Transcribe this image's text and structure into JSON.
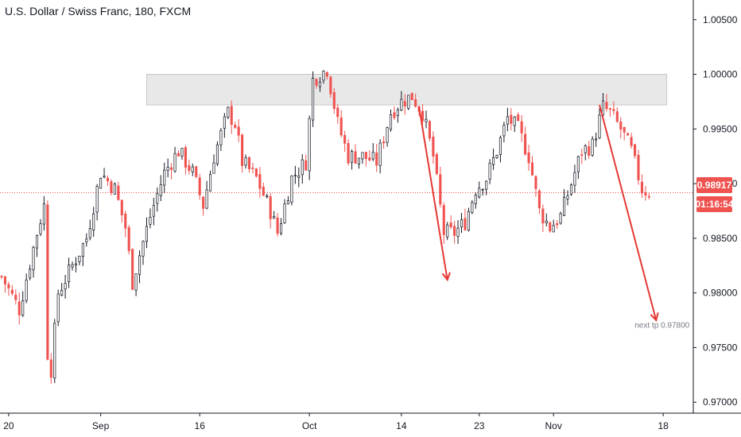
{
  "header": {
    "title": "U.S. Dollar / Swiss Franc, 180, FXCM"
  },
  "price_tags": {
    "last_price": "0.98917",
    "countdown": "01:16:54"
  },
  "colors": {
    "bull": "#131722",
    "bear": "#ef5350",
    "arrow": "#e53935",
    "resistance_zone": "#e8e8e8",
    "axis_text": "#131722",
    "price_line": "#ef5350"
  },
  "chart_data": {
    "type": "candlestick",
    "title": "U.S. Dollar / Swiss Franc, 180, FXCM",
    "ylim": [
      0.969,
      1.0068
    ],
    "y_ticks": [
      "1.00500",
      "1.00000",
      "0.99500",
      "0.99000",
      "0.98500",
      "0.98000",
      "0.97500",
      "0.97000"
    ],
    "x_ticks": [
      "20",
      "Sep",
      "16",
      "Oct",
      "14",
      "23",
      "Nov",
      "18"
    ],
    "xlim": [
      0,
      200
    ],
    "x_tick_positions": [
      2,
      28,
      56,
      87,
      113,
      135,
      156,
      187
    ],
    "last_price": 0.98917,
    "resistance_zone": {
      "x_from": 41,
      "x_to": 188,
      "y_low": 0.9972,
      "y_high": 1.0
    },
    "price_path": [
      [
        0,
        0.9815
      ],
      [
        5,
        0.9785
      ],
      [
        10,
        0.9855
      ],
      [
        12,
        0.988
      ],
      [
        13,
        0.9745
      ],
      [
        14,
        0.973
      ],
      [
        16,
        0.98
      ],
      [
        20,
        0.9825
      ],
      [
        24,
        0.985
      ],
      [
        28,
        0.991
      ],
      [
        32,
        0.9895
      ],
      [
        35,
        0.986
      ],
      [
        37,
        0.981
      ],
      [
        39,
        0.9835
      ],
      [
        42,
        0.987
      ],
      [
        46,
        0.991
      ],
      [
        50,
        0.993
      ],
      [
        54,
        0.991
      ],
      [
        57,
        0.988
      ],
      [
        60,
        0.9925
      ],
      [
        64,
        0.9965
      ],
      [
        66,
        0.9955
      ],
      [
        68,
        0.992
      ],
      [
        72,
        0.9905
      ],
      [
        76,
        0.9875
      ],
      [
        78,
        0.9855
      ],
      [
        82,
        0.9905
      ],
      [
        86,
        0.992
      ],
      [
        88,
        0.9995
      ],
      [
        92,
        1.0005
      ],
      [
        95,
        0.9955
      ],
      [
        98,
        0.9925
      ],
      [
        102,
        0.9925
      ],
      [
        106,
        0.992
      ],
      [
        110,
        0.9965
      ],
      [
        113,
        0.9975
      ],
      [
        116,
        0.998
      ],
      [
        119,
        0.9965
      ],
      [
        122,
        0.9925
      ],
      [
        125,
        0.9855
      ],
      [
        128,
        0.9855
      ],
      [
        131,
        0.9865
      ],
      [
        134,
        0.9895
      ],
      [
        137,
        0.9905
      ],
      [
        140,
        0.993
      ],
      [
        143,
        0.996
      ],
      [
        146,
        0.995
      ],
      [
        149,
        0.9925
      ],
      [
        152,
        0.9875
      ],
      [
        155,
        0.986
      ],
      [
        158,
        0.987
      ],
      [
        161,
        0.99
      ],
      [
        164,
        0.993
      ],
      [
        167,
        0.9935
      ],
      [
        170,
        0.997
      ],
      [
        172,
        0.9965
      ],
      [
        175,
        0.995
      ],
      [
        178,
        0.993
      ],
      [
        181,
        0.9895
      ],
      [
        183,
        0.9892
      ]
    ],
    "arrows": [
      {
        "from": [
          118,
          0.997
        ],
        "to": [
          126,
          0.9812
        ]
      },
      {
        "from": [
          169,
          0.9972
        ],
        "to": [
          185,
          0.9775
        ]
      }
    ],
    "annotations": [
      {
        "text": "next tp 0.97800",
        "x": 185,
        "y": 0.97755
      }
    ]
  }
}
